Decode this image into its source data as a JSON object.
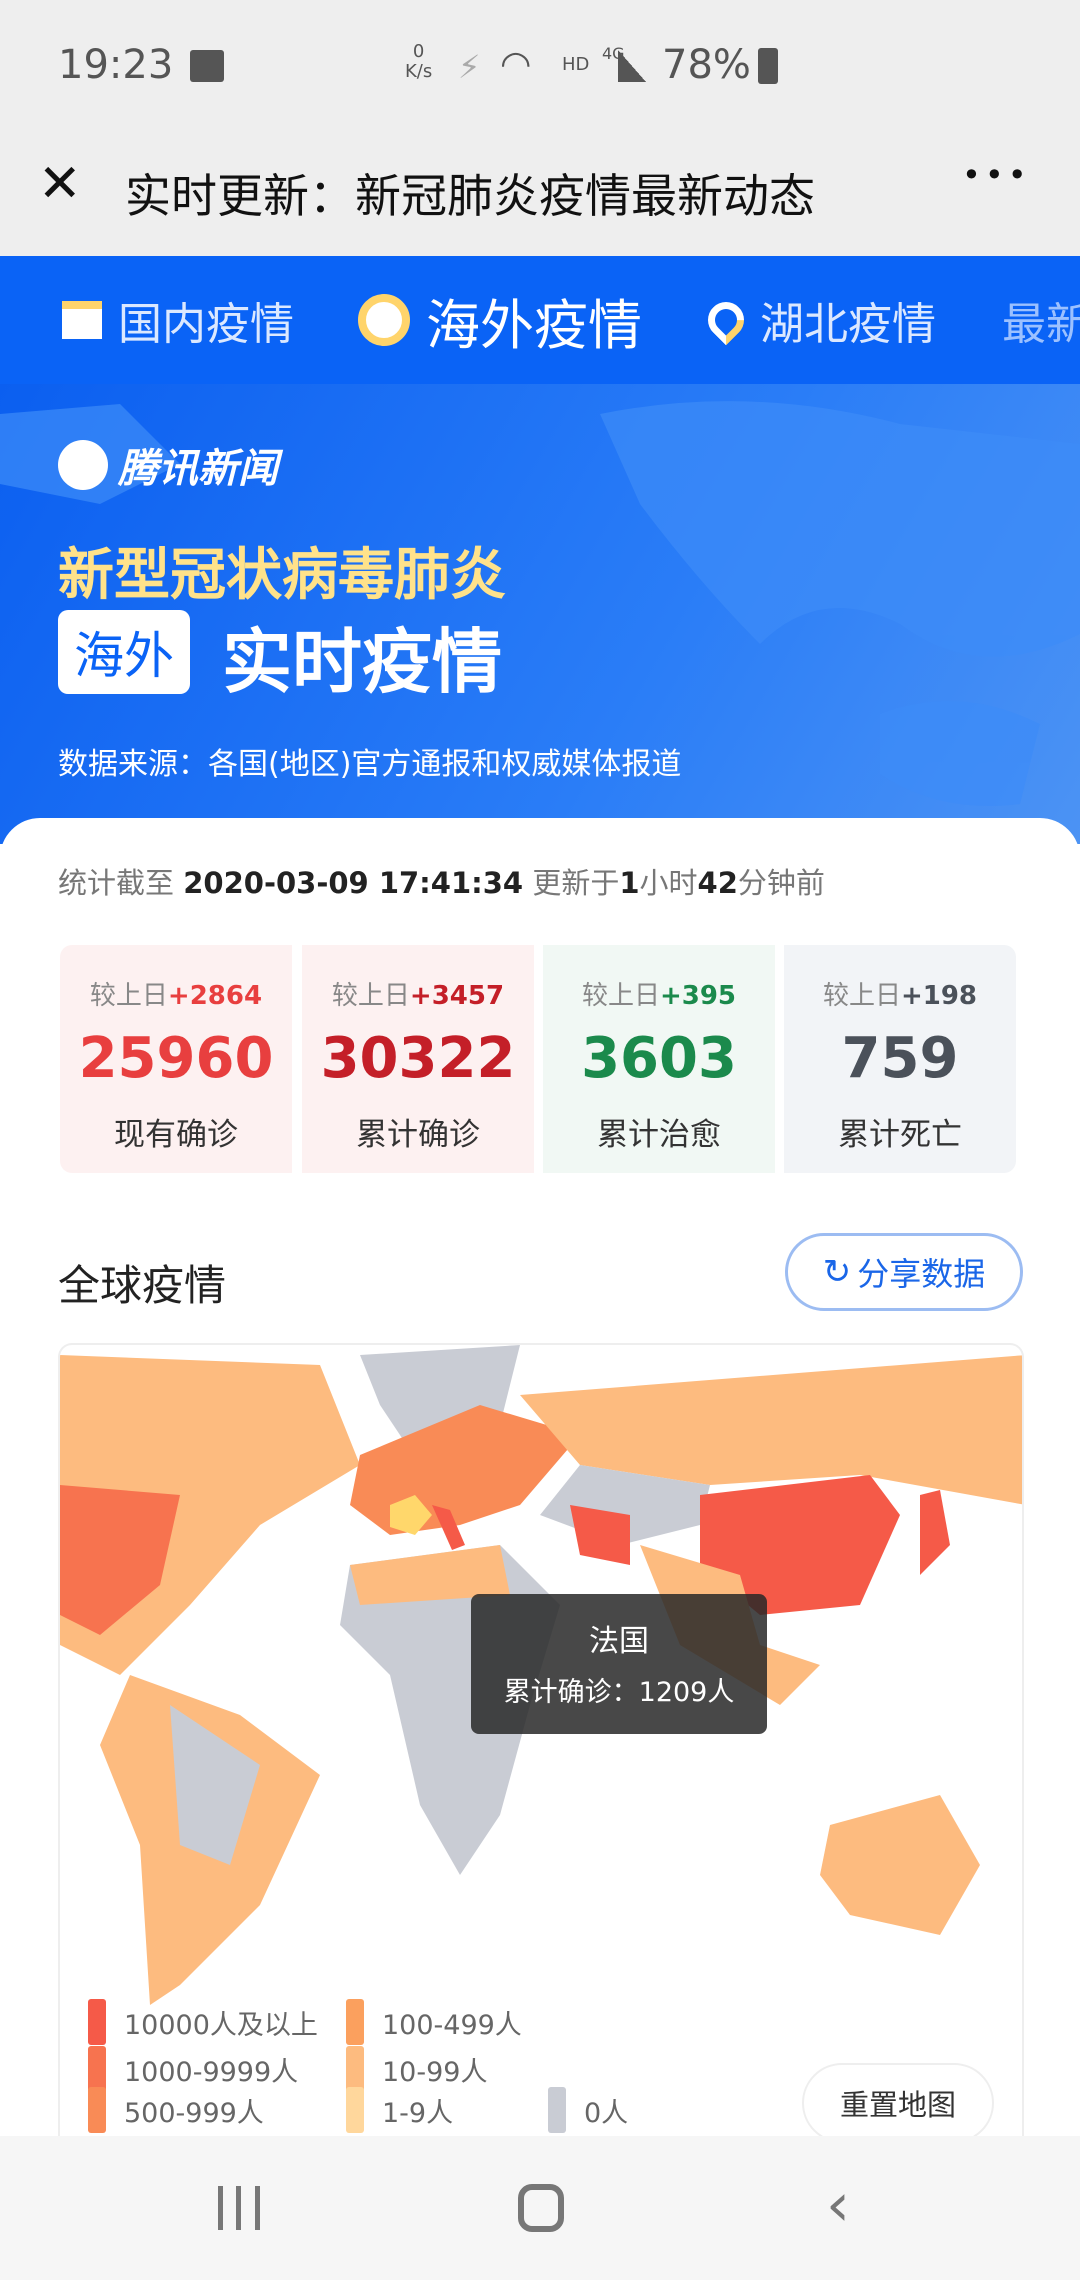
{
  "status_bar": {
    "time": "19:23",
    "net_speed_top": "0",
    "net_speed_unit": "K/s",
    "hd": "HD",
    "network": "4G",
    "battery": "78%"
  },
  "title_bar": {
    "title": "实时更新：新冠肺炎疫情最新动态",
    "more": "•••"
  },
  "tabs": [
    {
      "label": "国内疫情",
      "icon": "chart-icon"
    },
    {
      "label": "海外疫情",
      "icon": "globe-icon",
      "active": true
    },
    {
      "label": "湖北疫情",
      "icon": "location-pin-icon"
    },
    {
      "label": "最新",
      "icon": ""
    }
  ],
  "banner": {
    "logo": "腾讯新闻",
    "line1": "新型冠状病毒肺炎",
    "badge": "海外",
    "line2": "实时疫情",
    "source": "数据来源：各国(地区)官方通报和权威媒体报道"
  },
  "stats_time": {
    "prefix": "统计截至",
    "datetime": "2020-03-09 17:41:34",
    "updated_prefix": "更新于",
    "hours": "1",
    "hours_unit": "小时",
    "minutes": "42",
    "minutes_unit": "分钟前"
  },
  "stats": [
    {
      "delta_label": "较上日",
      "delta": "+2864",
      "value": "25960",
      "label": "现有确诊",
      "color": "#e83f3f",
      "bg": "#fdf1f1"
    },
    {
      "delta_label": "较上日",
      "delta": "+3457",
      "value": "30322",
      "label": "累计确诊",
      "color": "#c41f28",
      "bg": "#fdf1f1"
    },
    {
      "delta_label": "较上日",
      "delta": "+395",
      "value": "3603",
      "label": "累计治愈",
      "color": "#1b8a4c",
      "bg": "#f1f8f4"
    },
    {
      "delta_label": "较上日",
      "delta": "+198",
      "value": "759",
      "label": "累计死亡",
      "color": "#4b515a",
      "bg": "#f2f4f7"
    }
  ],
  "global": {
    "title": "全球疫情",
    "share_label": "分享数据",
    "reset_label": "重置地图"
  },
  "tooltip": {
    "country": "法国",
    "label": "累计确诊：",
    "value": "1209人"
  },
  "legend": [
    {
      "label": "10000人及以上",
      "color": "#f55a48"
    },
    {
      "label": "1000-9999人",
      "color": "#f7734f"
    },
    {
      "label": "500-999人",
      "color": "#f98b56"
    },
    {
      "label": "100-499人",
      "color": "#fba05e"
    },
    {
      "label": "10-99人",
      "color": "#fdbb7f"
    },
    {
      "label": "1-9人",
      "color": "#ffd79c"
    },
    {
      "label": "0人",
      "color": "#c9ccd4"
    }
  ]
}
